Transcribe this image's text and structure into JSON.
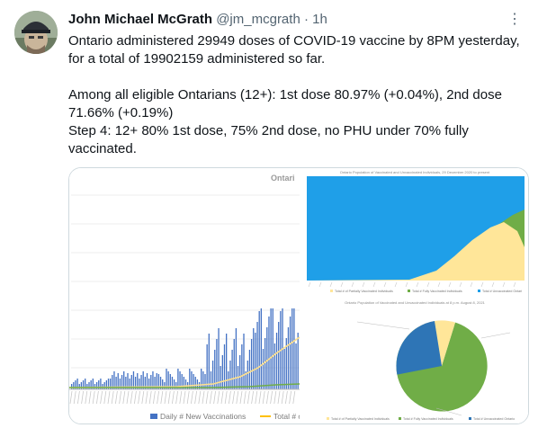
{
  "tweet": {
    "author_name": "John Michael McGrath",
    "handle": "@jm_mcgrath",
    "separator": "·",
    "time": "1h",
    "more_glyph": "⋮",
    "lines": [
      "Ontario administered 29949 doses of COVID-19 vaccine by 8PM yesterday, for a total of 19902159 administered so far.",
      "",
      "Among all eligible Ontarians (12+): 1st dose 80.97% (+0.04%), 2nd dose 71.66% (+0.19%)",
      "Step 4: 12+ 80% 1st dose, 75% 2nd dose, no PHU under 70% fully vaccinated."
    ]
  },
  "images": {
    "left_chart": {
      "title_fragment": "Ontari",
      "legend": [
        "Daily # New Vaccinations",
        "Total # o"
      ],
      "colors": {
        "bars": "#4472c4",
        "line": "#ffc000",
        "green_line": "#70ad47"
      }
    },
    "area_chart": {
      "title": "Ontario Population of Vaccinated and Unvaccinated Individuals, 29 December 2020 to present",
      "legend": [
        "Total # of Partially Vaccinated Individuals",
        "Total # Fully Vaccinated Individuals",
        "Total # Unvaccinated Ontari"
      ],
      "colors": {
        "unvaccinated": "#1f9fe8",
        "fully": "#70ad47",
        "partial": "#ffe699"
      }
    },
    "pie_chart": {
      "title": "Ontario Population of Vaccinated and Unvaccinated Individuals at 8 p.m. August 8, 2021",
      "legend": [
        "Total # of Partially Vaccinated Individuals",
        "Total # Fully Vaccinated Individuals",
        "Total # Unvaccinated Ontario"
      ],
      "colors": {
        "unvaccinated": "#2e75b6",
        "fully": "#70ad47",
        "partial": "#ffe699"
      }
    }
  }
}
